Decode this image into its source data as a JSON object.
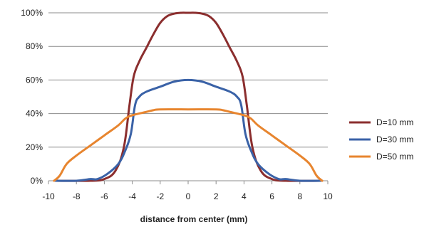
{
  "chart_data": {
    "type": "line",
    "title": "",
    "xlabel": "distance from center (mm)",
    "ylabel": "",
    "xlim": [
      -10,
      10
    ],
    "ylim": [
      0,
      100
    ],
    "x_ticks": [
      -10,
      -8,
      -6,
      -4,
      -2,
      0,
      2,
      4,
      6,
      8,
      10
    ],
    "y_ticks": [
      0,
      20,
      40,
      60,
      80,
      100
    ],
    "y_tick_format": "percent",
    "grid": "horizontal",
    "legend_position": "right",
    "series": [
      {
        "name": "D=10 mm",
        "color": "#8B2E2E",
        "points": [
          [
            -9.5,
            0
          ],
          [
            -7,
            0
          ],
          [
            -6,
            1
          ],
          [
            -5.2,
            6
          ],
          [
            -4.6,
            20
          ],
          [
            -4.2,
            45
          ],
          [
            -3.9,
            62
          ],
          [
            -3.5,
            71
          ],
          [
            -3,
            79
          ],
          [
            -2.5,
            87
          ],
          [
            -2,
            94
          ],
          [
            -1.5,
            98
          ],
          [
            -1,
            99.5
          ],
          [
            -0.5,
            100
          ],
          [
            0,
            100
          ],
          [
            0.5,
            100
          ],
          [
            1,
            99.5
          ],
          [
            1.5,
            98
          ],
          [
            2,
            94
          ],
          [
            2.5,
            87
          ],
          [
            3,
            79
          ],
          [
            3.5,
            71
          ],
          [
            3.9,
            62
          ],
          [
            4.2,
            45
          ],
          [
            4.6,
            20
          ],
          [
            5.2,
            6
          ],
          [
            6,
            1
          ],
          [
            7,
            0
          ],
          [
            9.5,
            0
          ]
        ]
      },
      {
        "name": "D=30 mm",
        "color": "#3A62A7",
        "points": [
          [
            -9.5,
            0
          ],
          [
            -8,
            0
          ],
          [
            -7,
            1
          ],
          [
            -6.5,
            1
          ],
          [
            -5.8,
            4
          ],
          [
            -5,
            10
          ],
          [
            -4.5,
            18
          ],
          [
            -4.1,
            28
          ],
          [
            -3.8,
            45
          ],
          [
            -3.5,
            50
          ],
          [
            -3,
            53
          ],
          [
            -2,
            56
          ],
          [
            -1,
            59
          ],
          [
            0,
            60
          ],
          [
            1,
            59
          ],
          [
            2,
            56
          ],
          [
            3,
            53
          ],
          [
            3.5,
            50
          ],
          [
            3.8,
            45
          ],
          [
            4.1,
            28
          ],
          [
            4.5,
            18
          ],
          [
            5,
            10
          ],
          [
            5.8,
            4
          ],
          [
            6.5,
            1
          ],
          [
            7,
            1
          ],
          [
            8,
            0
          ],
          [
            9.5,
            0
          ]
        ]
      },
      {
        "name": "D=50 mm",
        "color": "#E7852F",
        "points": [
          [
            -9.6,
            0
          ],
          [
            -9.2,
            3
          ],
          [
            -8.7,
            10
          ],
          [
            -8,
            15
          ],
          [
            -7,
            21
          ],
          [
            -6,
            27
          ],
          [
            -5,
            33
          ],
          [
            -4.5,
            37
          ],
          [
            -4,
            39
          ],
          [
            -3,
            41
          ],
          [
            -2.5,
            42
          ],
          [
            -2,
            42.5
          ],
          [
            0,
            42.5
          ],
          [
            2,
            42.5
          ],
          [
            2.5,
            42
          ],
          [
            3,
            41
          ],
          [
            4,
            39
          ],
          [
            4.5,
            37
          ],
          [
            5,
            33
          ],
          [
            6,
            27
          ],
          [
            7,
            21
          ],
          [
            8,
            15
          ],
          [
            8.7,
            10
          ],
          [
            9.2,
            3
          ],
          [
            9.6,
            0
          ]
        ]
      }
    ]
  }
}
